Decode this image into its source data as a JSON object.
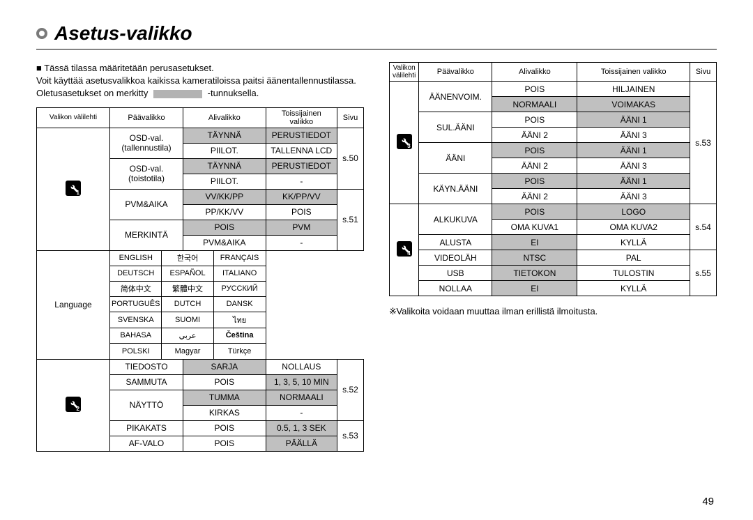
{
  "title": "Asetus-valikko",
  "intro1": "Tässä tilassa määritetään perusasetukset.",
  "intro2": "Voit käyttää asetusvalikkoa kaikissa kameratiloissa paitsi äänentallennustilassa.",
  "intro3a": "Oletusasetukset on merkitty",
  "intro3b": "-tunnuksella.",
  "note": "Valikoita voidaan muuttaa ilman erillistä ilmoitusta.",
  "pagenum": "49",
  "headers": {
    "tab": "Valikon välilehti",
    "main": "Päävalikko",
    "sub": "Alivalikko",
    "sec": "Toissijainen valikko",
    "pg": "Sivu"
  },
  "left": {
    "tab1_rows": [
      {
        "main": "OSD-val. (tallennustila)",
        "sub": "TÄYNNÄ",
        "sec": "PERUSTIEDOT",
        "shade": true,
        "pg": "s.50",
        "mrs": 2,
        "prs": 4
      },
      {
        "sub": "PIILOT.",
        "sec": "TALLENNA LCD"
      },
      {
        "main": "OSD-val. (toistotila)",
        "sub": "TÄYNNÄ",
        "sec": "PERUSTIEDOT",
        "shade": true,
        "mrs": 2
      },
      {
        "sub": "PIILOT.",
        "sec": "-"
      },
      {
        "main": "PVM&AIKA",
        "sub": "VV/KK/PP",
        "sec": "KK/PP/VV",
        "shade": true,
        "mrs": 2,
        "pg": "s.51",
        "prs": 10
      },
      {
        "sub": "PP/KK/VV",
        "sec": "POIS"
      },
      {
        "main": "MERKINTÄ",
        "sub": "POIS",
        "sec": "PVM",
        "shade": true,
        "mrs": 2
      },
      {
        "sub": "PVM&AIKA",
        "sec": "-"
      }
    ],
    "lang_main": "Language",
    "lang": [
      "ENGLISH",
      "한국어",
      "FRANÇAIS",
      "DEUTSCH",
      "ESPAÑOL",
      "ITALIANO",
      "简体中文",
      "繁體中文",
      "РУССКИЙ",
      "PORTUGUÊS",
      "DUTCH",
      "DANSK",
      "SVENSKA",
      "SUOMI",
      "ไทย",
      "BAHASA",
      "عربي",
      "Čeština",
      "POLSKI",
      "Magyar",
      "Türkçe"
    ],
    "lang_bold": 17,
    "tab2_rows": [
      {
        "main": "TIEDOSTO",
        "sub": "SARJA",
        "subshade": true,
        "sec": "NOLLAUS",
        "pg": "s.52",
        "prs": 4
      },
      {
        "main": "SAMMUTA",
        "sub": "POIS",
        "sec": "1, 3, 5, 10 MIN",
        "secshade": true
      },
      {
        "main": "NÄYTTÖ",
        "sub": "TUMMA",
        "sec": "NORMAALI",
        "shade": true,
        "mrs": 2
      },
      {
        "sub": "KIRKAS",
        "sec": "-"
      },
      {
        "main": "PIKAKATS",
        "sub": "POIS",
        "sec": "0.5, 1, 3 SEK",
        "secshade": true,
        "pg": "s.53",
        "prs": 2
      },
      {
        "main": "AF-VALO",
        "sub": "POIS",
        "sec": "PÄÄLLÄ",
        "secshade": true
      }
    ]
  },
  "right": {
    "tab3_rows": [
      {
        "main": "ÄÄNENVOIM.",
        "sub": "POIS",
        "sec": "HILJAINEN",
        "mrs": 2,
        "pg": "s.53",
        "prs": 8
      },
      {
        "sub": "NORMAALI",
        "sec": "VOIMAKAS",
        "shade": true
      },
      {
        "main": "SUL.ÄÄNI",
        "sub": "POIS",
        "sec": "ÄÄNI 1",
        "secshade": true,
        "mrs": 2
      },
      {
        "sub": "ÄÄNI 2",
        "sec": "ÄÄNI 3"
      },
      {
        "main": "ÄÄNI",
        "sub": "POIS",
        "sec": "ÄÄNI 1",
        "shade": true,
        "mrs": 2
      },
      {
        "sub": "ÄÄNI 2",
        "sec": "ÄÄNI 3"
      },
      {
        "main": "KÄYN.ÄÄNI",
        "sub": "POIS",
        "sec": "ÄÄNI 1",
        "shade": true,
        "mrs": 2
      },
      {
        "sub": "ÄÄNI 2",
        "sec": "ÄÄNI 3"
      }
    ],
    "tab4_rows": [
      {
        "main": "ALKUKUVA",
        "sub": "POIS",
        "sec": "LOGO",
        "shade": true,
        "mrs": 2,
        "pg": "s.54",
        "prs": 3
      },
      {
        "sub": "OMA KUVA1",
        "sec": "OMA KUVA2"
      },
      {
        "main": "ALUSTA",
        "sub": "EI",
        "sec": "KYLLÄ",
        "subshade": true
      },
      {
        "main": "VIDEOLÄH",
        "sub": "NTSC",
        "sec": "PAL",
        "subshade": true,
        "pg": "s.55",
        "prs": 3
      },
      {
        "main": "USB",
        "sub": "TIETOKON",
        "sec": "TULOSTIN",
        "subshade": true
      },
      {
        "main": "NOLLAA",
        "sub": "EI",
        "sec": "KYLLÄ",
        "subshade": true
      }
    ]
  }
}
